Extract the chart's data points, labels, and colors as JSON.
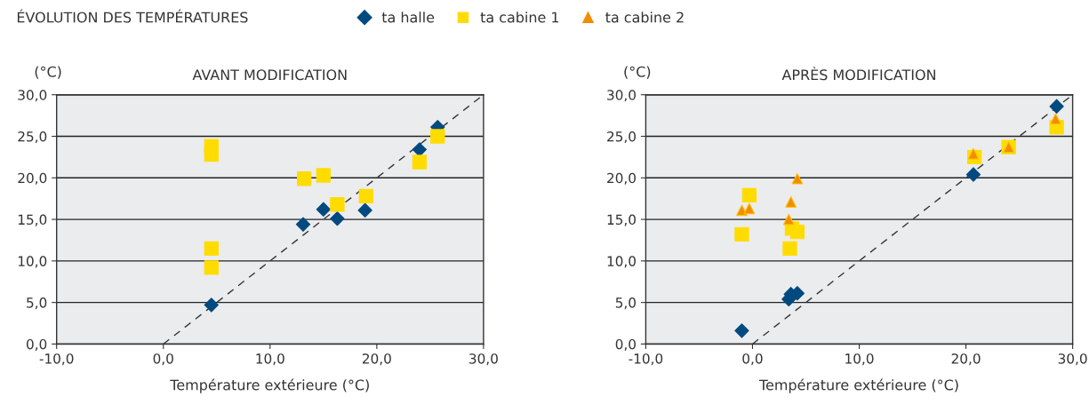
{
  "chart_data": [
    {
      "type": "scatter",
      "title": "AVANT MODIFICATION",
      "xlabel": "Température extérieure (°C)",
      "ylabel": "(°C)",
      "annotations": [
        "ÉVOLUTION DES TEMPÉRATURES"
      ],
      "xlim": [
        -10,
        30
      ],
      "ylim": [
        0,
        30
      ],
      "xticks": [
        {
          "value": -10,
          "label": "-10,0"
        },
        {
          "value": 0,
          "label": "0,0"
        },
        {
          "value": 10,
          "label": "10,0"
        },
        {
          "value": 20,
          "label": "20,0"
        },
        {
          "value": 30,
          "label": "30,0"
        }
      ],
      "yticks": [
        {
          "value": 0,
          "label": "0,0"
        },
        {
          "value": 5,
          "label": "5,0"
        },
        {
          "value": 10,
          "label": "10,0"
        },
        {
          "value": 15,
          "label": "15,0"
        },
        {
          "value": 20,
          "label": "20,0"
        },
        {
          "value": 25,
          "label": "25,0"
        },
        {
          "value": 30,
          "label": "30,0"
        }
      ],
      "grid": "y",
      "legend": false,
      "series": [
        {
          "type": "line",
          "color": "#333333",
          "line_style": "dashed",
          "marker": "none",
          "x": [
            0,
            30
          ],
          "values": [
            0,
            30
          ]
        },
        {
          "color": "#004a80",
          "marker": "diamond",
          "x": [
            4.5,
            13.1,
            15.0,
            16.3,
            18.9,
            24.0,
            25.7
          ],
          "values": [
            4.7,
            14.4,
            16.2,
            15.1,
            16.1,
            23.4,
            26.1
          ]
        },
        {
          "color": "#ffdc00",
          "marker": "square",
          "x": [
            4.5,
            4.5,
            4.5,
            4.5,
            13.2,
            15.0,
            16.3,
            19.0,
            24.0,
            25.7
          ],
          "values": [
            23.8,
            22.8,
            11.5,
            9.2,
            19.9,
            20.3,
            16.8,
            17.8,
            21.9,
            25.0
          ]
        }
      ]
    },
    {
      "type": "scatter",
      "title": "APRÈS MODIFICATION",
      "xlabel": "Température extérieure (°C)",
      "ylabel": "(°C)",
      "xlim": [
        -10,
        30
      ],
      "ylim": [
        0,
        30
      ],
      "xticks": [
        {
          "value": -10,
          "label": "-10,0"
        },
        {
          "value": 0,
          "label": "0,0"
        },
        {
          "value": 10,
          "label": "10,0"
        },
        {
          "value": 20,
          "label": "20,0"
        },
        {
          "value": 30,
          "label": "30,0"
        }
      ],
      "yticks": [
        {
          "value": 0,
          "label": "0,0"
        },
        {
          "value": 5,
          "label": "5,0"
        },
        {
          "value": 10,
          "label": "10,0"
        },
        {
          "value": 15,
          "label": "15,0"
        },
        {
          "value": 20,
          "label": "20,0"
        },
        {
          "value": 25,
          "label": "25,0"
        },
        {
          "value": 30,
          "label": "30,0"
        }
      ],
      "grid": "y",
      "legend": "top",
      "series": [
        {
          "type": "line",
          "color": "#333333",
          "line_style": "dashed",
          "marker": "none",
          "x": [
            0,
            30
          ],
          "values": [
            0,
            30
          ]
        },
        {
          "name": "ta halle",
          "color": "#004a80",
          "marker": "diamond",
          "x": [
            -1.0,
            3.4,
            3.6,
            4.2,
            20.7,
            28.5
          ],
          "values": [
            1.6,
            5.4,
            6.0,
            6.1,
            20.4,
            28.6
          ]
        },
        {
          "name": "ta cabine 1",
          "color": "#ffdc00",
          "marker": "square",
          "x": [
            -1.0,
            -0.3,
            3.5,
            3.7,
            4.2,
            20.8,
            24.0,
            28.5
          ],
          "values": [
            13.2,
            17.9,
            11.5,
            13.9,
            13.5,
            22.5,
            23.7,
            26.1
          ]
        },
        {
          "name": "ta cabine 2",
          "color": "#f28c00",
          "marker": "triangle",
          "x": [
            -1.0,
            -0.3,
            3.4,
            3.6,
            4.2,
            20.7,
            24.0,
            28.4
          ],
          "values": [
            16.1,
            16.3,
            15.0,
            17.1,
            19.9,
            22.9,
            23.7,
            27.1
          ]
        }
      ]
    }
  ]
}
